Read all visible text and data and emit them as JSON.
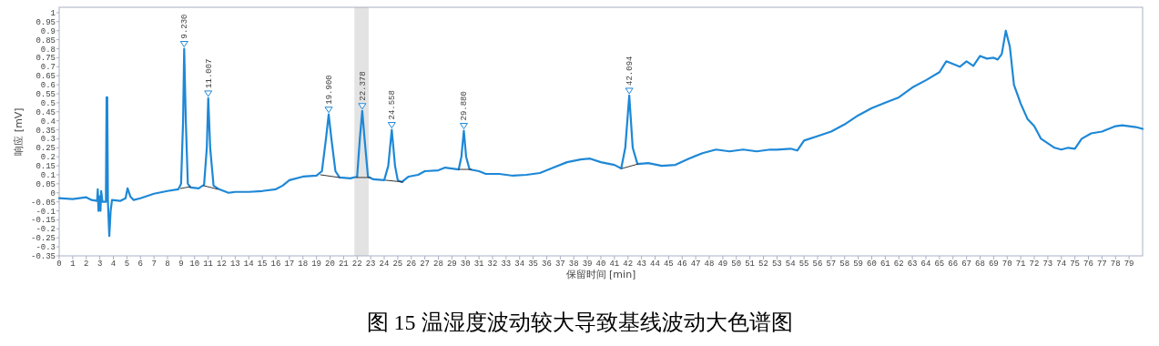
{
  "chart_data": {
    "type": "line",
    "title": "图 15  温湿度波动较大导致基线波动大色谱图",
    "xlabel": "保留时间 [min]",
    "ylabel": "响应 [mV]",
    "xlim": [
      0,
      80
    ],
    "ylim": [
      -0.35,
      1.03
    ],
    "xticks": [
      0,
      1,
      2,
      3,
      4,
      5,
      6,
      7,
      8,
      9,
      10,
      11,
      12,
      13,
      14,
      15,
      16,
      17,
      18,
      19,
      20,
      21,
      22,
      23,
      24,
      25,
      26,
      27,
      28,
      29,
      30,
      31,
      32,
      33,
      34,
      35,
      36,
      37,
      38,
      39,
      40,
      41,
      42,
      43,
      44,
      45,
      46,
      47,
      48,
      49,
      50,
      51,
      52,
      53,
      54,
      55,
      56,
      57,
      58,
      59,
      60,
      61,
      62,
      63,
      64,
      65,
      66,
      67,
      68,
      69,
      70,
      71,
      72,
      73,
      74,
      75,
      76,
      77,
      78,
      79
    ],
    "yticks": [
      -0.35,
      -0.3,
      -0.25,
      -0.2,
      -0.15,
      -0.1,
      -0.05,
      0,
      0.05,
      0.1,
      0.15,
      0.2,
      0.25,
      0.3,
      0.35,
      0.4,
      0.45,
      0.5,
      0.55,
      0.6,
      0.65,
      0.7,
      0.75,
      0.8,
      0.85,
      0.9,
      0.95,
      1
    ],
    "grid": false,
    "marker": "none",
    "line_style": "solid",
    "bands": [
      {
        "axis": "x",
        "from": 21.8,
        "to": 22.85,
        "color": "#e3e3e3"
      }
    ],
    "series": [
      {
        "color": "#1e88d6",
        "x": [
          0,
          1,
          2,
          2.4,
          2.8,
          2.85,
          2.9,
          3.0,
          3.05,
          3.1,
          3.2,
          3.45,
          3.5,
          3.55,
          3.6,
          3.7,
          3.8,
          3.9,
          4.5,
          4.9,
          5.05,
          5.25,
          5.5,
          6,
          7,
          8,
          8.8,
          9.0,
          9.15,
          9.23,
          9.35,
          9.5,
          9.7,
          10.3,
          10.7,
          10.9,
          11.007,
          11.15,
          11.4,
          11.8,
          12.5,
          13,
          14,
          15,
          16,
          16.5,
          17,
          18,
          19,
          19.4,
          19.7,
          19.9,
          20.1,
          20.4,
          20.7,
          21.5,
          22.0,
          22.2,
          22.378,
          22.55,
          22.8,
          23.2,
          24.0,
          24.3,
          24.558,
          24.8,
          25.0,
          25.3,
          25.8,
          26.5,
          27,
          28,
          28.5,
          29.5,
          29.7,
          29.88,
          30.05,
          30.3,
          31,
          31.5,
          32.5,
          33.5,
          34.5,
          35.5,
          36.5,
          37.5,
          38.5,
          39.2,
          40,
          41,
          41.5,
          41.8,
          42.094,
          42.35,
          42.7,
          43.5,
          44.5,
          45.5,
          46.5,
          47.5,
          48.5,
          49.5,
          50.5,
          51.5,
          52.5,
          53,
          54,
          54.5,
          55,
          56,
          57,
          58,
          59,
          60,
          61,
          62,
          63,
          64,
          65,
          65.5,
          66.5,
          67,
          67.5,
          68,
          68.5,
          69,
          69.3,
          69.6,
          69.9,
          70.2,
          70.5,
          71,
          71.5,
          72,
          72.5,
          73.5,
          74,
          74.5,
          75,
          75.5,
          76.2,
          77,
          78,
          78.5,
          79.5,
          80
        ],
        "values": [
          -0.03,
          -0.035,
          -0.025,
          -0.04,
          -0.045,
          0.02,
          -0.1,
          -0.02,
          -0.1,
          0.01,
          -0.05,
          -0.05,
          0.53,
          0.53,
          -0.05,
          -0.24,
          -0.1,
          -0.04,
          -0.045,
          -0.03,
          0.025,
          -0.02,
          -0.04,
          -0.03,
          -0.005,
          0.01,
          0.02,
          0.05,
          0.4,
          0.8,
          0.4,
          0.05,
          0.03,
          0.025,
          0.045,
          0.25,
          0.525,
          0.25,
          0.04,
          0.02,
          0.0,
          0.005,
          0.005,
          0.01,
          0.02,
          0.04,
          0.07,
          0.09,
          0.095,
          0.12,
          0.3,
          0.435,
          0.3,
          0.12,
          0.085,
          0.08,
          0.09,
          0.3,
          0.455,
          0.3,
          0.09,
          0.075,
          0.07,
          0.15,
          0.35,
          0.15,
          0.07,
          0.06,
          0.09,
          0.1,
          0.12,
          0.125,
          0.14,
          0.13,
          0.2,
          0.345,
          0.2,
          0.13,
          0.12,
          0.105,
          0.105,
          0.095,
          0.1,
          0.11,
          0.14,
          0.17,
          0.185,
          0.19,
          0.17,
          0.155,
          0.135,
          0.25,
          0.54,
          0.25,
          0.16,
          0.165,
          0.15,
          0.155,
          0.19,
          0.22,
          0.24,
          0.23,
          0.24,
          0.23,
          0.24,
          0.24,
          0.245,
          0.235,
          0.29,
          0.315,
          0.34,
          0.38,
          0.43,
          0.47,
          0.5,
          0.53,
          0.585,
          0.625,
          0.67,
          0.73,
          0.7,
          0.73,
          0.705,
          0.76,
          0.745,
          0.75,
          0.74,
          0.77,
          0.9,
          0.81,
          0.6,
          0.495,
          0.41,
          0.37,
          0.3,
          0.25,
          0.24,
          0.25,
          0.245,
          0.3,
          0.33,
          0.34,
          0.37,
          0.375,
          0.365,
          0.355
        ]
      },
      {
        "type": "line",
        "color": "#333333",
        "x": [
          8.96,
          9.7,
          9.8,
          10.65,
          11.7,
          11.8,
          19.3,
          20.7,
          20.8,
          21.95,
          22.95,
          23.0,
          24.1,
          25.4,
          25.5,
          29.5,
          30.45,
          30.5,
          41.55,
          42.75
        ],
        "values": [
          0.024,
          0.034,
          null,
          0.04,
          0.02,
          null,
          0.1,
          0.085,
          null,
          0.085,
          0.085,
          null,
          0.07,
          0.06,
          null,
          0.13,
          0.13,
          null,
          0.135,
          0.16
        ]
      }
    ],
    "annotations": [
      {
        "text": "9.230",
        "x": 9.23,
        "y": 0.8
      },
      {
        "text": "11.007",
        "x": 11.007,
        "y": 0.525
      },
      {
        "text": "19.900",
        "x": 19.9,
        "y": 0.435
      },
      {
        "text": "22.378",
        "x": 22.378,
        "y": 0.455
      },
      {
        "text": "24.558",
        "x": 24.558,
        "y": 0.35
      },
      {
        "text": "29.880",
        "x": 29.88,
        "y": 0.345
      },
      {
        "text": "42.094",
        "x": 42.094,
        "y": 0.54
      }
    ]
  }
}
